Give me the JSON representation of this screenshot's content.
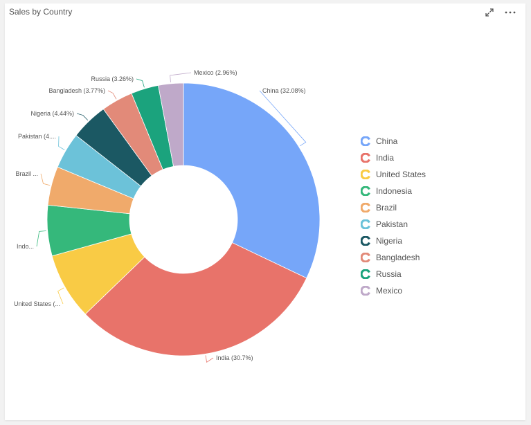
{
  "panel": {
    "title": "Sales by Country",
    "actions": [
      {
        "name": "expand",
        "icon": "expand-icon"
      },
      {
        "name": "more",
        "icon": "more-horizontal-icon"
      }
    ]
  },
  "chart_data": {
    "type": "pie",
    "variant": "donut",
    "title": "Sales by Country",
    "legend_position": "right",
    "categories": [
      "China",
      "India",
      "United States",
      "Indonesia",
      "Brazil",
      "Pakistan",
      "Nigeria",
      "Bangladesh",
      "Russia",
      "Mexico"
    ],
    "values": [
      32.08,
      30.7,
      7.9,
      6.0,
      4.6,
      4.29,
      4.44,
      3.77,
      3.26,
      2.96
    ],
    "colors": [
      "#76a6f9",
      "#e8736a",
      "#f9cb45",
      "#35b87b",
      "#f0aa6b",
      "#6cc2d9",
      "#1b5863",
      "#e28a79",
      "#1ba37d",
      "#bfa9c9"
    ],
    "data_labels": [
      "China (32.08%)",
      "India (30.7%)",
      "United States (...",
      "Indo...",
      "Brazil ...",
      "Pakistan (4....",
      "Nigeria (4.44%)",
      "Bangladesh (3.77%)",
      "Russia (3.26%)",
      "Mexico (2.96%)"
    ]
  }
}
